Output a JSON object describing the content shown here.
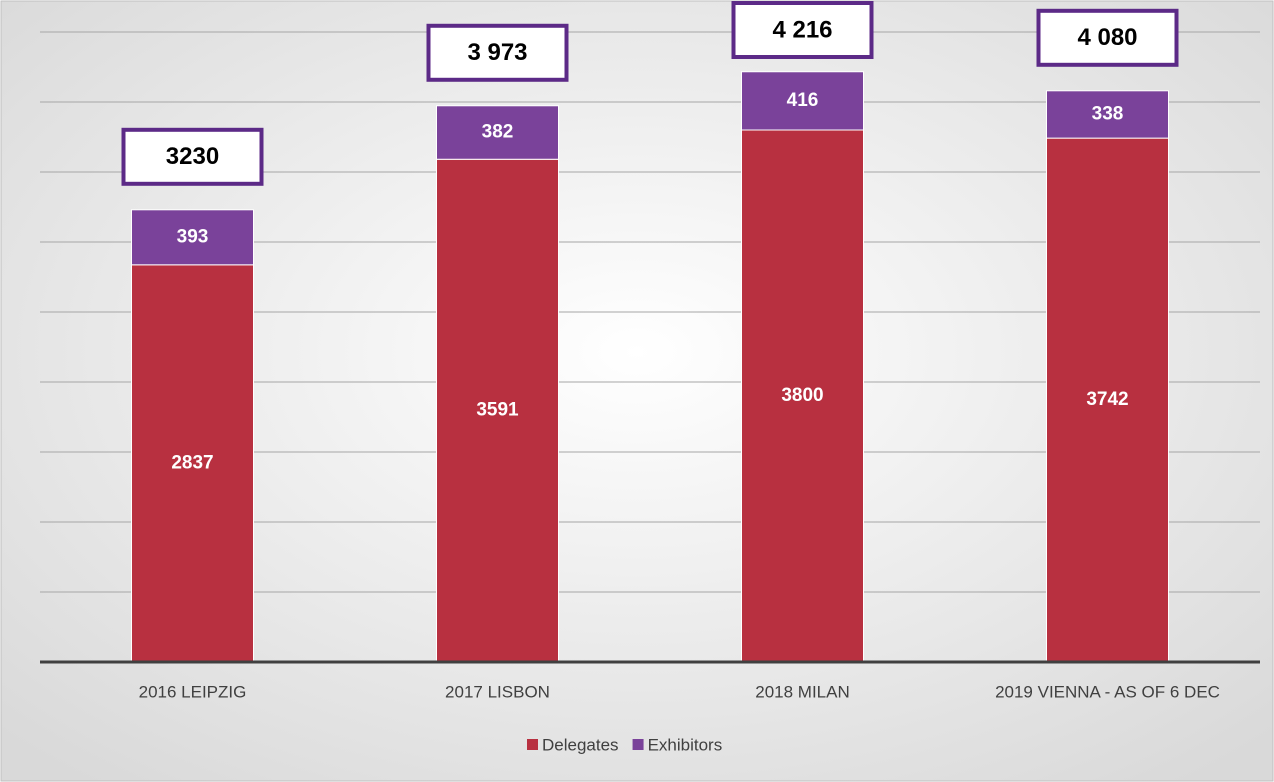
{
  "chart_data": {
    "type": "stacked_bar",
    "categories": [
      "2016 LEIPZIG",
      "2017 LISBON",
      "2018 MILAN",
      "2019 VIENNA - AS OF 6 DEC"
    ],
    "series": [
      {
        "name": "Delegates",
        "color": "#b83040",
        "values": [
          2837,
          3591,
          3800,
          3742
        ]
      },
      {
        "name": "Exhibitors",
        "color": "#7a429a",
        "values": [
          393,
          382,
          416,
          338
        ]
      }
    ],
    "annotations": [
      "3230",
      "3 973",
      "4 216",
      "4 080"
    ],
    "ylim": [
      0,
      4500
    ],
    "yticks": [
      0,
      500,
      1000,
      1500,
      2000,
      2500,
      3000,
      3500,
      4000,
      4500
    ],
    "grid": true,
    "legend": "bottom"
  }
}
